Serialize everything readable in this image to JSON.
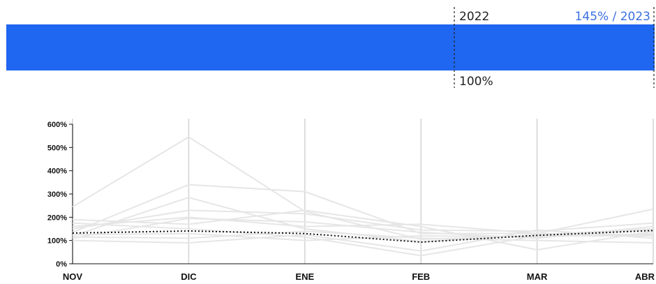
{
  "header": {
    "year_label": "2022",
    "relative_label": "145% / 2023",
    "baseline_label": "100%"
  },
  "colors": {
    "bar": "#1f66f0",
    "relative_text": "#3b6fe0",
    "grid": "#d3d3d3",
    "history": "#e6e6e6",
    "highlight": "#111111"
  },
  "bar": {
    "value_pct": 145,
    "baseline_pct": 100
  },
  "chart_data": {
    "type": "line",
    "categories": [
      "NOV",
      "DIC",
      "ENE",
      "FEB",
      "MAR",
      "ABR"
    ],
    "ylim": [
      0,
      600
    ],
    "yticks": [
      0,
      100,
      200,
      300,
      400,
      500,
      600
    ],
    "ytick_labels": [
      "0%",
      "100%",
      "200%",
      "300%",
      "400%",
      "500%",
      "600%"
    ],
    "ylabel": "",
    "xlabel": "",
    "title": "",
    "grid": "vertical",
    "highlight_series": {
      "style": "dotted",
      "values": [
        132,
        141,
        130,
        93,
        122,
        143
      ]
    },
    "background_series": [
      {
        "values": [
          245,
          545,
          225,
          105,
          120,
          145
        ]
      },
      {
        "values": [
          135,
          340,
          310,
          130,
          130,
          235
        ]
      },
      {
        "values": [
          120,
          285,
          150,
          95,
          125,
          150
        ]
      },
      {
        "values": [
          150,
          230,
          215,
          145,
          140,
          175
        ]
      },
      {
        "values": [
          110,
          195,
          180,
          135,
          110,
          160
        ]
      },
      {
        "values": [
          175,
          150,
          115,
          35,
          120,
          120
        ]
      },
      {
        "values": [
          190,
          170,
          230,
          160,
          60,
          140
        ]
      },
      {
        "values": [
          100,
          90,
          125,
          55,
          145,
          110
        ]
      },
      {
        "values": [
          115,
          110,
          140,
          110,
          100,
          90
        ]
      },
      {
        "values": [
          160,
          200,
          160,
          170,
          130,
          125
        ]
      },
      {
        "values": [
          125,
          130,
          100,
          120,
          115,
          130
        ]
      }
    ]
  }
}
